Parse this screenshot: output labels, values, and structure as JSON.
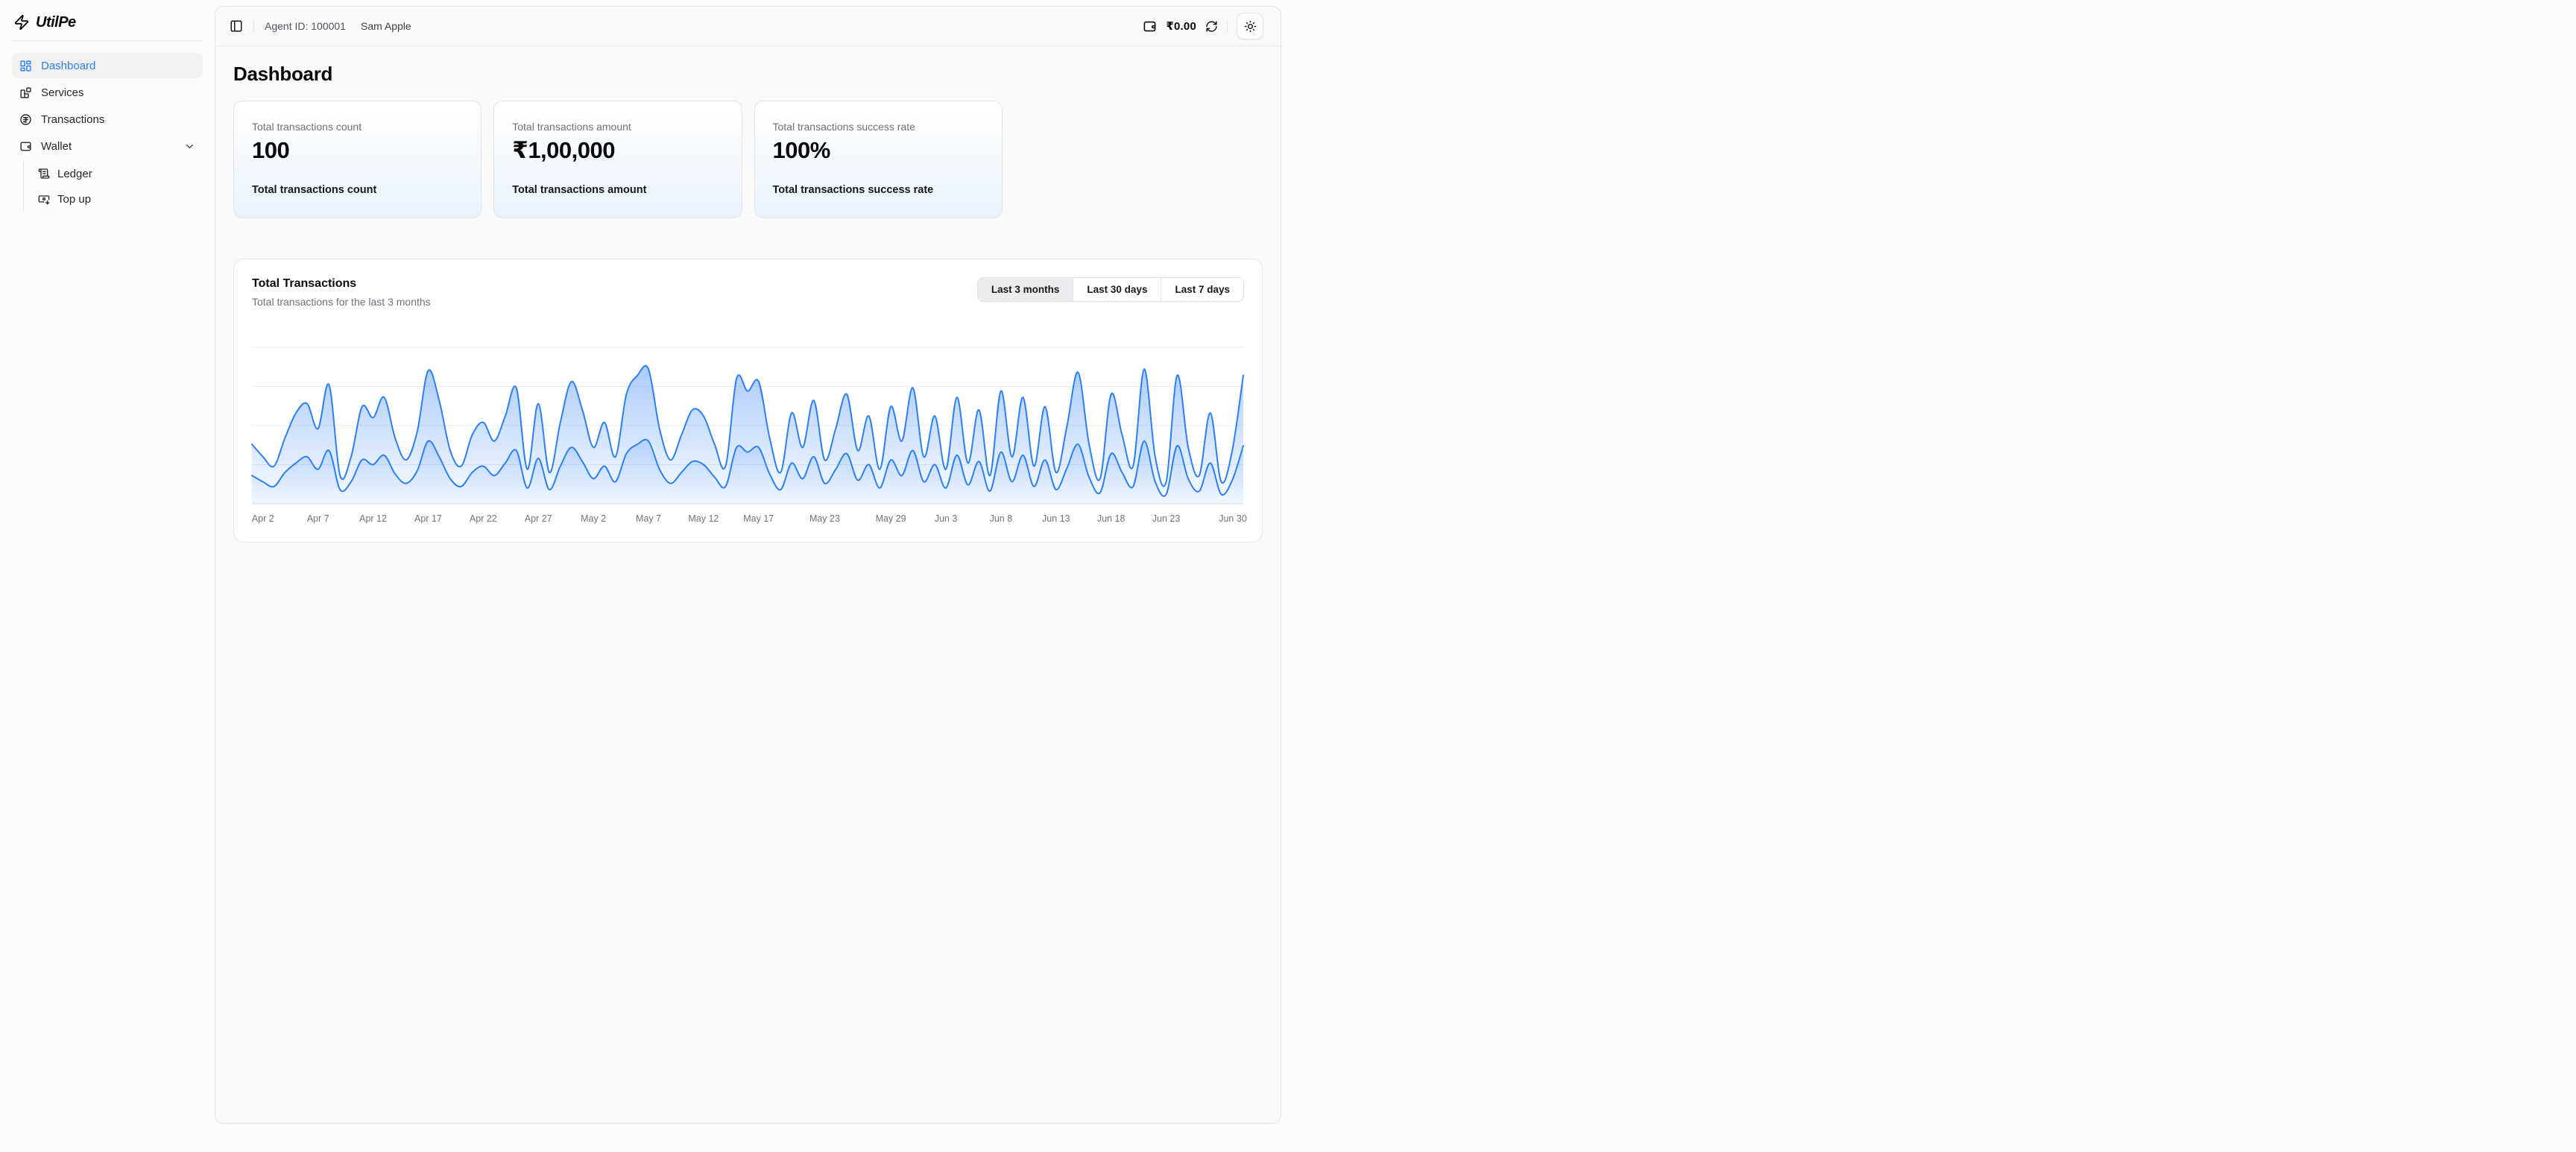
{
  "brand": {
    "name": "UtilPe"
  },
  "sidebar": {
    "items": [
      {
        "label": "Dashboard",
        "icon": "layout-dashboard-icon",
        "active": true
      },
      {
        "label": "Services",
        "icon": "blocks-icon",
        "active": false
      },
      {
        "label": "Transactions",
        "icon": "badge-indian-rupee-icon",
        "active": false
      },
      {
        "label": "Wallet",
        "icon": "wallet-icon",
        "active": false,
        "expanded": true
      }
    ],
    "wallet_children": [
      {
        "label": "Ledger",
        "icon": "scroll-text-icon"
      },
      {
        "label": "Top up",
        "icon": "banknote-arrow-down-icon"
      }
    ]
  },
  "header": {
    "agent_id": "Agent ID: 100001",
    "user_name": "Sam Apple",
    "wallet_balance": "₹0.00"
  },
  "page": {
    "title": "Dashboard"
  },
  "stats": [
    {
      "label": "Total transactions count",
      "value": "100",
      "footer": "Total transactions count"
    },
    {
      "label": "Total transactions amount",
      "value": "₹1,00,000",
      "footer": "Total transactions amount"
    },
    {
      "label": "Total transactions success rate",
      "value": "100%",
      "footer": "Total transactions success rate"
    }
  ],
  "chart_card": {
    "title": "Total Transactions",
    "subtitle": "Total transactions for the last 3 months",
    "ranges": [
      {
        "label": "Last 3 months",
        "active": true
      },
      {
        "label": "Last 30 days",
        "active": false
      },
      {
        "label": "Last 7 days",
        "active": false
      }
    ]
  },
  "chart_data": {
    "type": "area",
    "x_start": "Apr 1",
    "x_end": "Jun 30",
    "x_unit": "day",
    "grid": true,
    "legend": "none",
    "ylim": [
      0,
      105
    ],
    "stroke_color": "#2b80f6",
    "fill_color": "#3b86f8",
    "ticks": [
      {
        "i": 1,
        "label": "Apr 2"
      },
      {
        "i": 6,
        "label": "Apr 7"
      },
      {
        "i": 11,
        "label": "Apr 12"
      },
      {
        "i": 16,
        "label": "Apr 17"
      },
      {
        "i": 21,
        "label": "Apr 22"
      },
      {
        "i": 26,
        "label": "Apr 27"
      },
      {
        "i": 31,
        "label": "May 2"
      },
      {
        "i": 36,
        "label": "May 7"
      },
      {
        "i": 41,
        "label": "May 12"
      },
      {
        "i": 46,
        "label": "May 17"
      },
      {
        "i": 52,
        "label": "May 23"
      },
      {
        "i": 58,
        "label": "May 29"
      },
      {
        "i": 63,
        "label": "Jun 3"
      },
      {
        "i": 68,
        "label": "Jun 8"
      },
      {
        "i": 73,
        "label": "Jun 13"
      },
      {
        "i": 78,
        "label": "Jun 18"
      },
      {
        "i": 83,
        "label": "Jun 23"
      },
      {
        "i": 90,
        "label": "Jun 30"
      }
    ],
    "series": [
      {
        "name": "series_1",
        "values": [
          38,
          30,
          24,
          42,
          58,
          64,
          48,
          76,
          18,
          30,
          62,
          55,
          68,
          42,
          28,
          46,
          85,
          66,
          34,
          24,
          44,
          52,
          40,
          56,
          74,
          22,
          64,
          20,
          52,
          78,
          60,
          36,
          52,
          30,
          70,
          82,
          86,
          48,
          28,
          44,
          60,
          56,
          38,
          24,
          80,
          72,
          78,
          42,
          20,
          58,
          36,
          66,
          28,
          48,
          70,
          34,
          56,
          22,
          62,
          40,
          74,
          30,
          56,
          22,
          68,
          26,
          60,
          18,
          72,
          30,
          68,
          24,
          62,
          20,
          50,
          84,
          38,
          16,
          70,
          44,
          24,
          86,
          30,
          14,
          82,
          36,
          18,
          58,
          14,
          34,
          82
        ]
      },
      {
        "name": "series_2",
        "values": [
          18,
          14,
          11,
          20,
          26,
          30,
          22,
          34,
          9,
          14,
          28,
          25,
          31,
          19,
          13,
          21,
          40,
          30,
          16,
          11,
          20,
          24,
          18,
          26,
          34,
          10,
          29,
          9,
          24,
          36,
          27,
          16,
          24,
          14,
          32,
          38,
          40,
          22,
          13,
          20,
          27,
          25,
          17,
          11,
          36,
          33,
          36,
          19,
          9,
          26,
          16,
          30,
          13,
          22,
          32,
          15,
          25,
          10,
          28,
          18,
          34,
          14,
          25,
          10,
          31,
          12,
          27,
          8,
          33,
          14,
          31,
          11,
          28,
          9,
          23,
          38,
          17,
          7,
          32,
          20,
          11,
          40,
          14,
          6,
          37,
          16,
          8,
          26,
          6,
          15,
          37
        ]
      }
    ]
  }
}
